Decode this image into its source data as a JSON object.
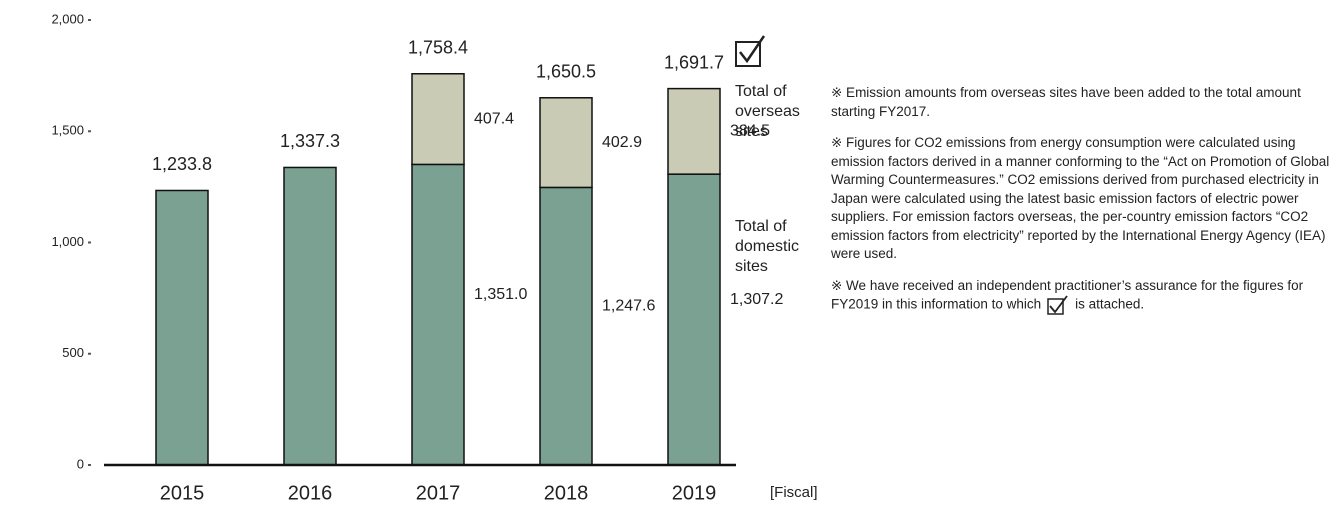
{
  "chart_data": {
    "type": "stacked_bar",
    "categories": [
      "2015",
      "2016",
      "2017",
      "2018",
      "2019"
    ],
    "x_label": "[Fiscal]",
    "series": [
      {
        "name": "Total of domestic sites",
        "color": "#7aa192",
        "values": [
          1233.8,
          1337.3,
          1351.0,
          1247.6,
          1307.2
        ],
        "value_labels": [
          null,
          null,
          "1,351.0",
          "1,247.6",
          "1,307.2"
        ]
      },
      {
        "name": "Total of overseas sites",
        "color": "#c9cbb5",
        "values": [
          null,
          null,
          407.4,
          402.9,
          384.5
        ],
        "value_labels": [
          null,
          null,
          "407.4",
          "402.9",
          "384.5"
        ]
      }
    ],
    "totals": [
      1233.8,
      1337.3,
      1758.4,
      1650.5,
      1691.7
    ],
    "total_labels": [
      "1,233.8",
      "1,337.3",
      "1,758.4",
      "1,650.5",
      "1,691.7"
    ],
    "ylim": [
      0,
      2000
    ],
    "yticks": [
      0,
      500,
      {
        "value": 1000,
        "label": "1,000"
      },
      {
        "value": 1500,
        "label": "1,500"
      },
      {
        "value": 2000,
        "label": "2,000"
      }
    ]
  },
  "notes": [
    "※ Emission amounts from overseas sites have been added to the total amount starting FY2017.",
    "※ Figures for CO2 emissions from energy consumption were calculated using emission factors derived in a manner conforming to the “Act on Promotion of Global Warming Countermeasures.” CO2 emissions derived from purchased electricity in Japan were calculated using the latest basic emission factors of electric power suppliers. For emission factors overseas, the per-country emission factors “CO2 emission factors from electricity” reported by the International Energy Agency (IEA) were used.",
    "※ We have received an independent practitioner’s assurance for the figures for FY2019 in this information to which",
    "is attached."
  ]
}
